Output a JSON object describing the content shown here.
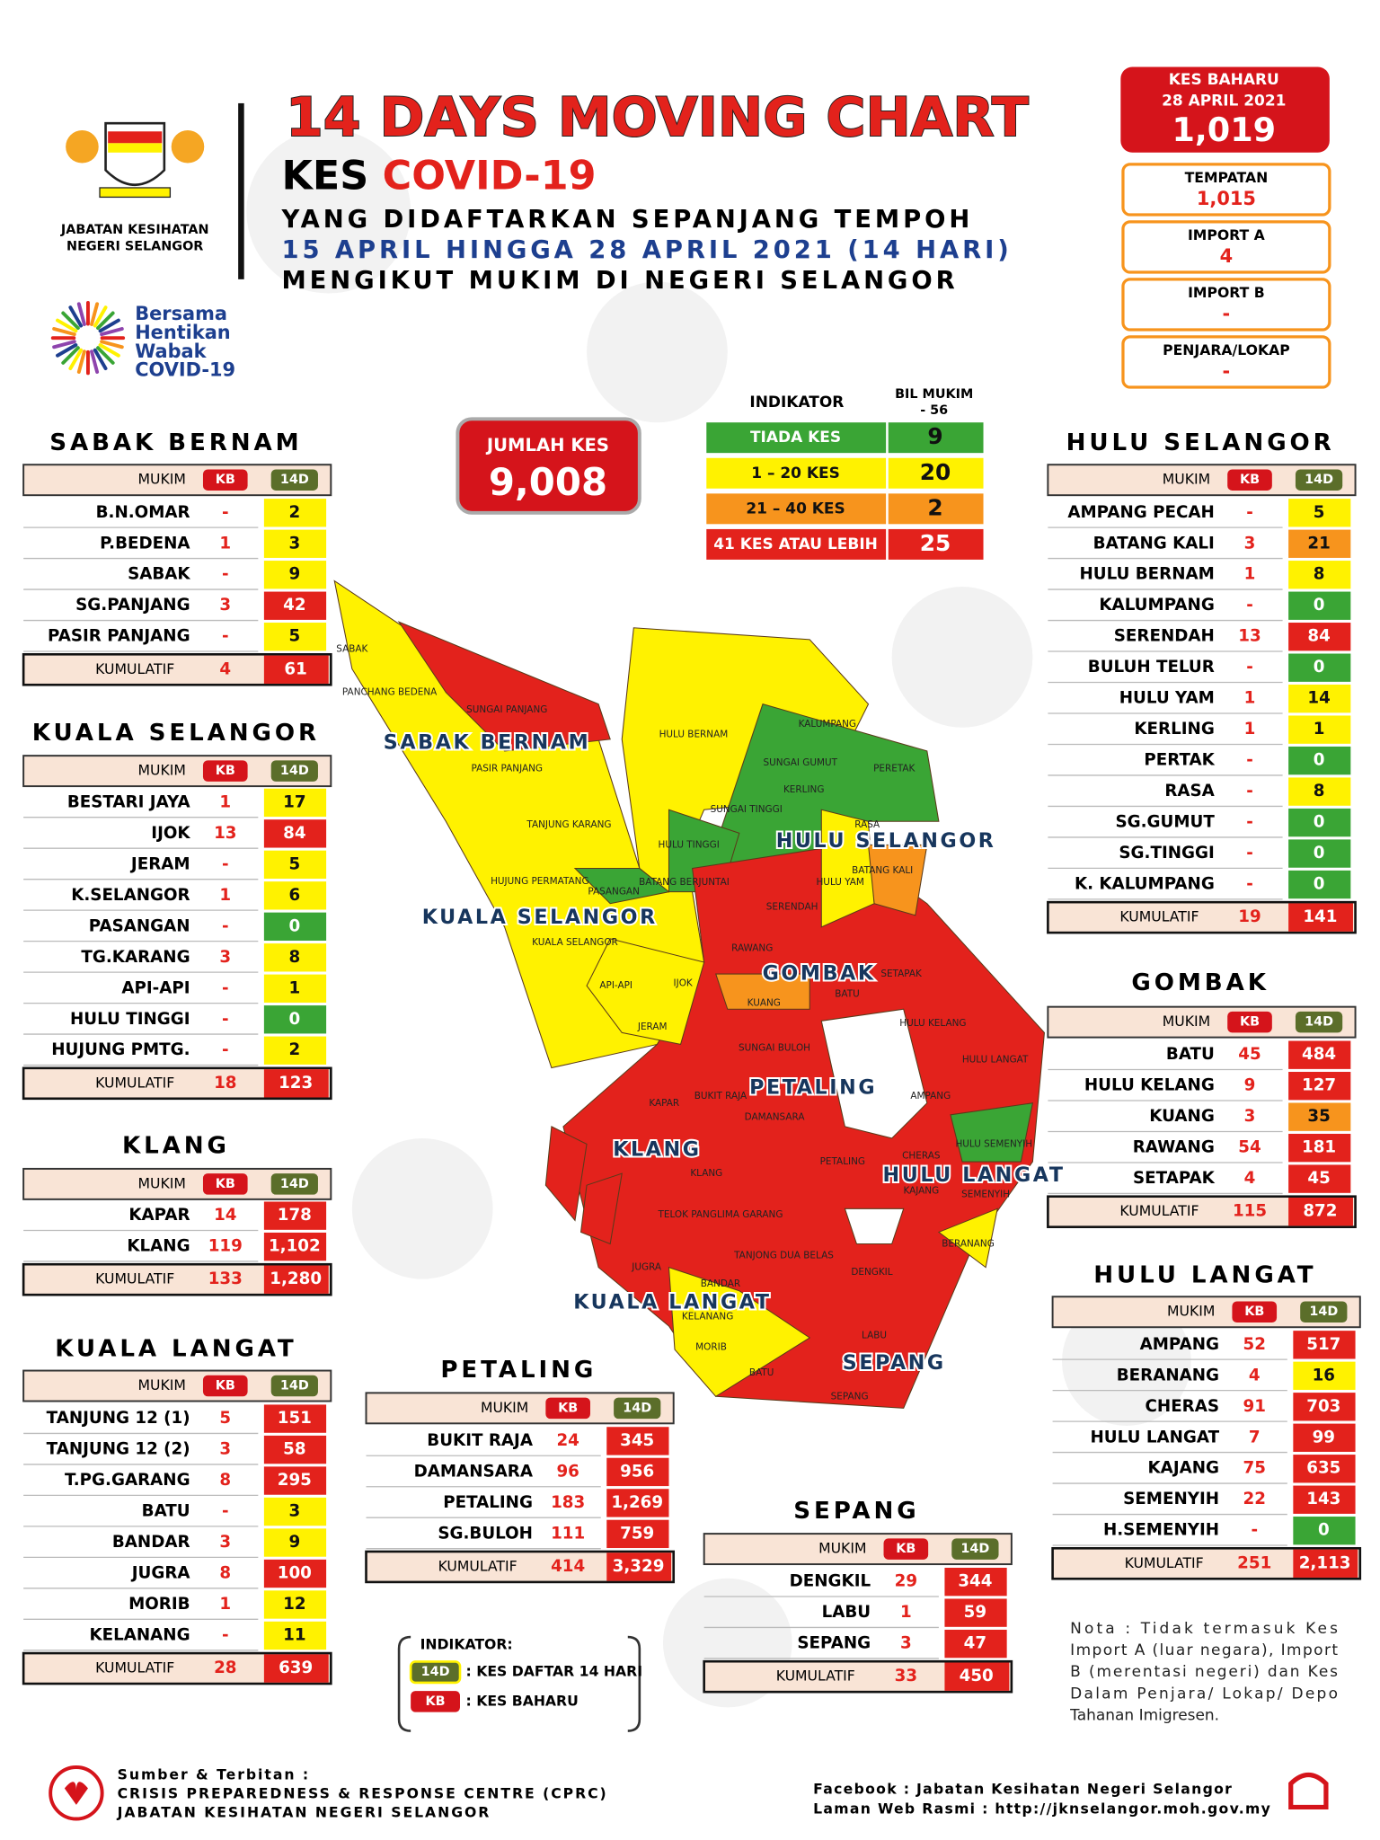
{
  "header": {
    "agency": [
      "JABATAN KESIHATAN",
      "NEGERI SELANGOR"
    ],
    "campaign": [
      "Bersama",
      "Hentikan",
      "Wabak",
      "COVID-19"
    ],
    "title": "14 DAYS MOVING CHART",
    "subtitle_kes": "KES",
    "subtitle_covid": "COVID-19",
    "lines": [
      "YANG DIDAFTARKAN SEPANJANG TEMPOH",
      "15 APRIL HINGGA 28 APRIL 2021 (14 HARI)",
      "MENGIKUT MUKIM DI NEGERI SELANGOR"
    ]
  },
  "new_cases": {
    "label": "KES BAHARU",
    "date": "28 APRIL 2021",
    "value": "1,019",
    "breakdown": [
      {
        "label": "TEMPATAN",
        "value": "1,015"
      },
      {
        "label": "IMPORT A",
        "value": "4"
      },
      {
        "label": "IMPORT B",
        "value": "-"
      },
      {
        "label": "PENJARA/LOKAP",
        "value": "-"
      }
    ]
  },
  "total": {
    "label": "JUMLAH KES",
    "value": "9,008"
  },
  "indicator": {
    "header": "INDIKATOR",
    "count_header": [
      "BIL MUKIM",
      "- 56"
    ],
    "rows": [
      {
        "label": "TIADA KES",
        "count": "9",
        "color": "#3aa535"
      },
      {
        "label": "1 – 20 KES",
        "count": "20",
        "color": "#fff200"
      },
      {
        "label": "21 – 40 KES",
        "count": "2",
        "color": "#f7941d"
      },
      {
        "label": "41 KES ATAU LEBIH",
        "count": "25",
        "color": "#e3221c"
      }
    ]
  },
  "districts": [
    {
      "name": "SABAK BERNAM",
      "columns": [
        "MUKIM",
        "KB",
        "14D"
      ],
      "rows": [
        [
          "B.N.OMAR",
          "-",
          "2"
        ],
        [
          "P.BEDENA",
          "1",
          "3"
        ],
        [
          "SABAK",
          "-",
          "9"
        ],
        [
          "SG.PANJANG",
          "3",
          "42"
        ],
        [
          "PASIR PANJANG",
          "-",
          "5"
        ]
      ],
      "total": [
        "KUMULATIF",
        "4",
        "61"
      ]
    },
    {
      "name": "KUALA SELANGOR",
      "columns": [
        "MUKIM",
        "KB",
        "14D"
      ],
      "rows": [
        [
          "BESTARI JAYA",
          "1",
          "17"
        ],
        [
          "IJOK",
          "13",
          "84"
        ],
        [
          "JERAM",
          "-",
          "5"
        ],
        [
          "K.SELANGOR",
          "1",
          "6"
        ],
        [
          "PASANGAN",
          "-",
          "0"
        ],
        [
          "TG.KARANG",
          "3",
          "8"
        ],
        [
          "API-API",
          "-",
          "1"
        ],
        [
          "HULU TINGGI",
          "-",
          "0"
        ],
        [
          "HUJUNG PMTG.",
          "-",
          "2"
        ]
      ],
      "total": [
        "KUMULATIF",
        "18",
        "123"
      ]
    },
    {
      "name": "KLANG",
      "columns": [
        "MUKIM",
        "KB",
        "14D"
      ],
      "rows": [
        [
          "KAPAR",
          "14",
          "178"
        ],
        [
          "KLANG",
          "119",
          "1,102"
        ]
      ],
      "total": [
        "KUMULATIF",
        "133",
        "1,280"
      ]
    },
    {
      "name": "KUALA LANGAT",
      "columns": [
        "MUKIM",
        "KB",
        "14D"
      ],
      "rows": [
        [
          "TANJUNG 12 (1)",
          "5",
          "151"
        ],
        [
          "TANJUNG 12 (2)",
          "3",
          "58"
        ],
        [
          "T.PG.GARANG",
          "8",
          "295"
        ],
        [
          "BATU",
          "-",
          "3"
        ],
        [
          "BANDAR",
          "3",
          "9"
        ],
        [
          "JUGRA",
          "8",
          "100"
        ],
        [
          "MORIB",
          "1",
          "12"
        ],
        [
          "KELANANG",
          "-",
          "11"
        ]
      ],
      "total": [
        "KUMULATIF",
        "28",
        "639"
      ]
    },
    {
      "name": "PETALING",
      "columns": [
        "MUKIM",
        "KB",
        "14D"
      ],
      "rows": [
        [
          "BUKIT RAJA",
          "24",
          "345"
        ],
        [
          "DAMANSARA",
          "96",
          "956"
        ],
        [
          "PETALING",
          "183",
          "1,269"
        ],
        [
          "SG.BULOH",
          "111",
          "759"
        ]
      ],
      "total": [
        "KUMULATIF",
        "414",
        "3,329"
      ]
    },
    {
      "name": "SEPANG",
      "columns": [
        "MUKIM",
        "KB",
        "14D"
      ],
      "rows": [
        [
          "DENGKIL",
          "29",
          "344"
        ],
        [
          "LABU",
          "1",
          "59"
        ],
        [
          "SEPANG",
          "3",
          "47"
        ]
      ],
      "total": [
        "KUMULATIF",
        "33",
        "450"
      ]
    },
    {
      "name": "HULU SELANGOR",
      "columns": [
        "MUKIM",
        "KB",
        "14D"
      ],
      "rows": [
        [
          "AMPANG PECAH",
          "-",
          "5"
        ],
        [
          "BATANG KALI",
          "3",
          "21"
        ],
        [
          "HULU BERNAM",
          "1",
          "8"
        ],
        [
          "KALUMPANG",
          "-",
          "0"
        ],
        [
          "SERENDAH",
          "13",
          "84"
        ],
        [
          "BULUH TELUR",
          "-",
          "0"
        ],
        [
          "HULU YAM",
          "1",
          "14"
        ],
        [
          "KERLING",
          "1",
          "1"
        ],
        [
          "PERTAK",
          "-",
          "0"
        ],
        [
          "RASA",
          "-",
          "8"
        ],
        [
          "SG.GUMUT",
          "-",
          "0"
        ],
        [
          "SG.TINGGI",
          "-",
          "0"
        ],
        [
          "K. KALUMPANG",
          "-",
          "0"
        ]
      ],
      "total": [
        "KUMULATIF",
        "19",
        "141"
      ]
    },
    {
      "name": "GOMBAK",
      "columns": [
        "MUKIM",
        "KB",
        "14D"
      ],
      "rows": [
        [
          "BATU",
          "45",
          "484"
        ],
        [
          "HULU KELANG",
          "9",
          "127"
        ],
        [
          "KUANG",
          "3",
          "35"
        ],
        [
          "RAWANG",
          "54",
          "181"
        ],
        [
          "SETAPAK",
          "4",
          "45"
        ]
      ],
      "total": [
        "KUMULATIF",
        "115",
        "872"
      ]
    },
    {
      "name": "HULU LANGAT",
      "columns": [
        "MUKIM",
        "KB",
        "14D"
      ],
      "rows": [
        [
          "AMPANG",
          "52",
          "517"
        ],
        [
          "BERANANG",
          "4",
          "16"
        ],
        [
          "CHERAS",
          "91",
          "703"
        ],
        [
          "HULU LANGAT",
          "7",
          "99"
        ],
        [
          "KAJANG",
          "75",
          "635"
        ],
        [
          "SEMENYIH",
          "22",
          "143"
        ],
        [
          "H.SEMENYIH",
          "-",
          "0"
        ]
      ],
      "total": [
        "KUMULATIF",
        "251",
        "2,113"
      ]
    }
  ],
  "map": {
    "regions": [
      "SABAK BERNAM",
      "HULU SELANGOR",
      "KUALA SELANGOR",
      "GOMBAK",
      "PETALING",
      "KLANG",
      "HULU LANGAT",
      "KUALA LANGAT",
      "SEPANG"
    ],
    "mukim": [
      "SABAK",
      "PANCHANG BEDENA",
      "SUNGAI PANJANG",
      "PASIR PANJANG",
      "TANJUNG KARANG",
      "HULU BERNAM",
      "KALUMPANG",
      "SUNGAI GUMUT",
      "PERETAK",
      "SUNGAI TINGGI",
      "KERLING",
      "HULU TINGGI",
      "RASA",
      "HULU YAM",
      "BATANG KALI",
      "HUJUNG PERMATANG",
      "PASANGAN",
      "BATANG BERJUNTAI",
      "SERENDAH",
      "KUALA SELANGOR",
      "RAWANG",
      "SETAPAK",
      "API-API",
      "IJOK",
      "BATU",
      "KUANG",
      "HULU KELANG",
      "JERAM",
      "SUNGAI BULOH",
      "HULU LANGAT",
      "BUKIT RAJA",
      "AMPANG",
      "KAPAR",
      "DAMANSARA",
      "HULU SEMENYIH",
      "KLANG",
      "CHERAS",
      "PETALING",
      "KAJANG",
      "SEMENYIH",
      "TELOK PANGLIMA GARANG",
      "TANJONG DUA BELAS",
      "BERANANG",
      "JUGRA",
      "BANDAR",
      "DENGKIL",
      "KELANANG",
      "LABU",
      "MORIB",
      "BATU",
      "SEPANG"
    ]
  },
  "legend": {
    "title": "INDIKATOR:",
    "items": [
      {
        "key": "14D",
        "text": ": KES DAFTAR 14 HARI"
      },
      {
        "key": "KB",
        "text": ": KES BAHARU"
      }
    ]
  },
  "note": [
    "Nota : Tidak termasuk Kes",
    "Import A (luar negara), Import",
    "B (merentasi negeri) dan Kes",
    "Dalam Penjara/ Lokap/ Depo",
    "Tahanan Imigresen."
  ],
  "footer": {
    "source": [
      "Sumber & Terbitan :",
      "CRISIS PREPAREDNESS & RESPONSE CENTRE (CPRC)",
      "JABATAN KESIHATAN NEGERI SELANGOR"
    ],
    "links": [
      "Facebook : Jabatan Kesihatan Negeri Selangor",
      "Laman Web Rasmi : http://jknselangor.moh.gov.my"
    ]
  }
}
